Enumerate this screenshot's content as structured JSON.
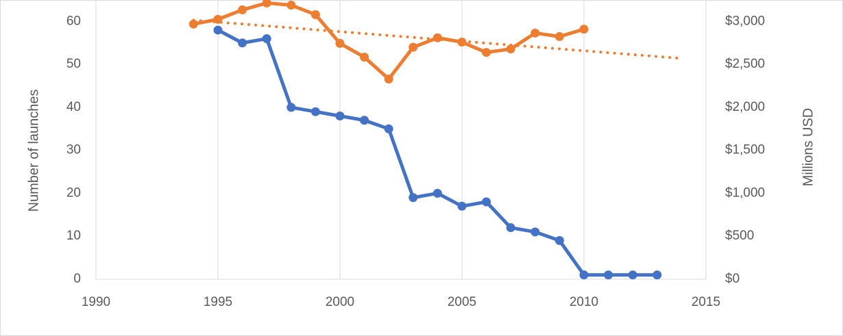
{
  "chart_data": {
    "type": "line",
    "y_label": "Number of launches",
    "y2_label": "Millions USD",
    "xlim": [
      1990,
      2015
    ],
    "xticks": [
      1990,
      1995,
      2000,
      2005,
      2010,
      2015
    ],
    "ylim": [
      0,
      65
    ],
    "yticks": [
      0,
      10,
      20,
      30,
      40,
      50,
      60
    ],
    "y2lim": [
      0,
      3250
    ],
    "y2ticks": [
      {
        "value": 0,
        "label": "$0"
      },
      {
        "value": 500,
        "label": "$500"
      },
      {
        "value": 1000,
        "label": "$1,000"
      },
      {
        "value": 1500,
        "label": "$1,500"
      },
      {
        "value": 2000,
        "label": "$2,000"
      },
      {
        "value": 2500,
        "label": "$2,500"
      },
      {
        "value": 3000,
        "label": "$3,000"
      }
    ],
    "grid": "x",
    "series": [
      {
        "color": "#4472c4",
        "markers": true,
        "x": [
          1995,
          1996,
          1997,
          1998,
          1999,
          2000,
          2001,
          2002,
          2003,
          2004,
          2005,
          2006,
          2007,
          2008,
          2009,
          2010,
          2011,
          2012,
          2013
        ],
        "values": [
          58,
          55,
          56,
          40,
          39,
          38,
          37,
          35,
          19,
          20,
          17,
          18,
          12,
          11,
          9,
          1,
          1,
          1,
          1
        ]
      },
      {
        "color": "#ed7d31",
        "markers": true,
        "axis": "y2",
        "x": [
          1994,
          1995,
          1996,
          1997,
          1998,
          1999,
          2000,
          2001,
          2002,
          2003,
          2004,
          2005,
          2006,
          2007,
          2008,
          2009,
          2010
        ],
        "values": [
          2970,
          3025,
          3135,
          3215,
          3190,
          3080,
          2745,
          2585,
          2330,
          2700,
          2810,
          2760,
          2640,
          2680,
          2865,
          2825,
          2910
        ]
      },
      {
        "color": "#ed7d31",
        "markers": false,
        "dash": "dotted",
        "axis": "y2",
        "x": [
          1994,
          2014
        ],
        "values": [
          3015,
          2570
        ]
      }
    ]
  }
}
